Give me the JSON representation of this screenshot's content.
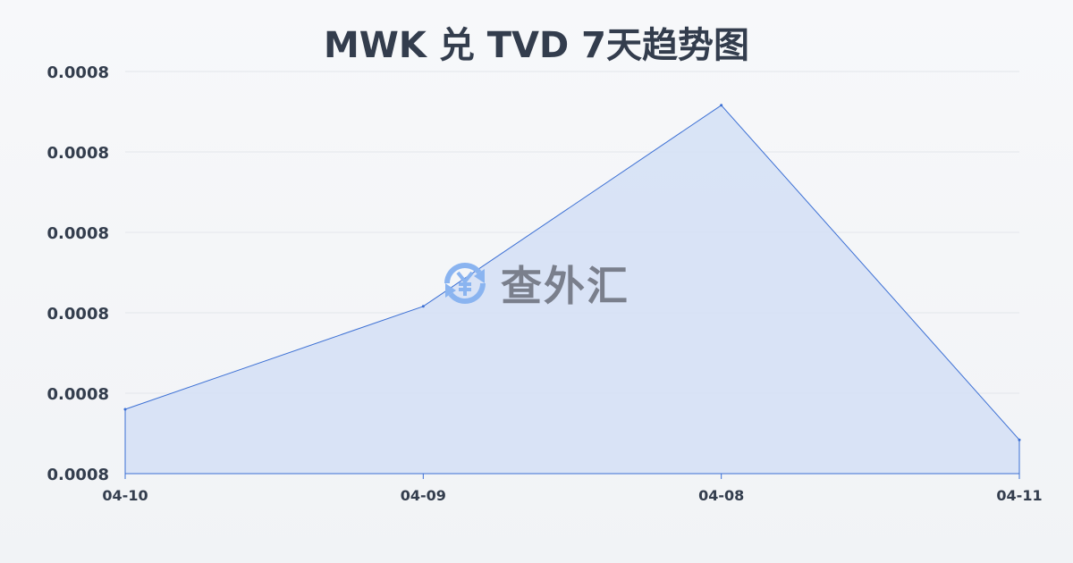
{
  "chart_data": {
    "type": "area",
    "title": "MWK 兑 TVD 7天趋势图",
    "categories": [
      "04-10",
      "04-09",
      "04-08",
      "04-11"
    ],
    "series": [
      {
        "values": [
          0.000808,
          0.0008208,
          0.0008458,
          0.0008042
        ]
      }
    ],
    "yticks": [
      0.0008,
      0.00081,
      0.00082,
      0.00083,
      0.00084,
      0.00085
    ],
    "ytick_labels": [
      "0.0008",
      "0.0008",
      "0.0008",
      "0.0008",
      "0.0008",
      "0.0008"
    ],
    "ylim": [
      0.0008,
      0.00085
    ],
    "grid": true,
    "colors": {
      "line": "#3b6fd4",
      "fill": "#d6e1f5",
      "grid": "#e3e6eb",
      "text": "#333d4d"
    }
  },
  "watermark": {
    "text": "查外汇",
    "icon": "yen-exchange-icon",
    "color": "#8ab4f0"
  }
}
